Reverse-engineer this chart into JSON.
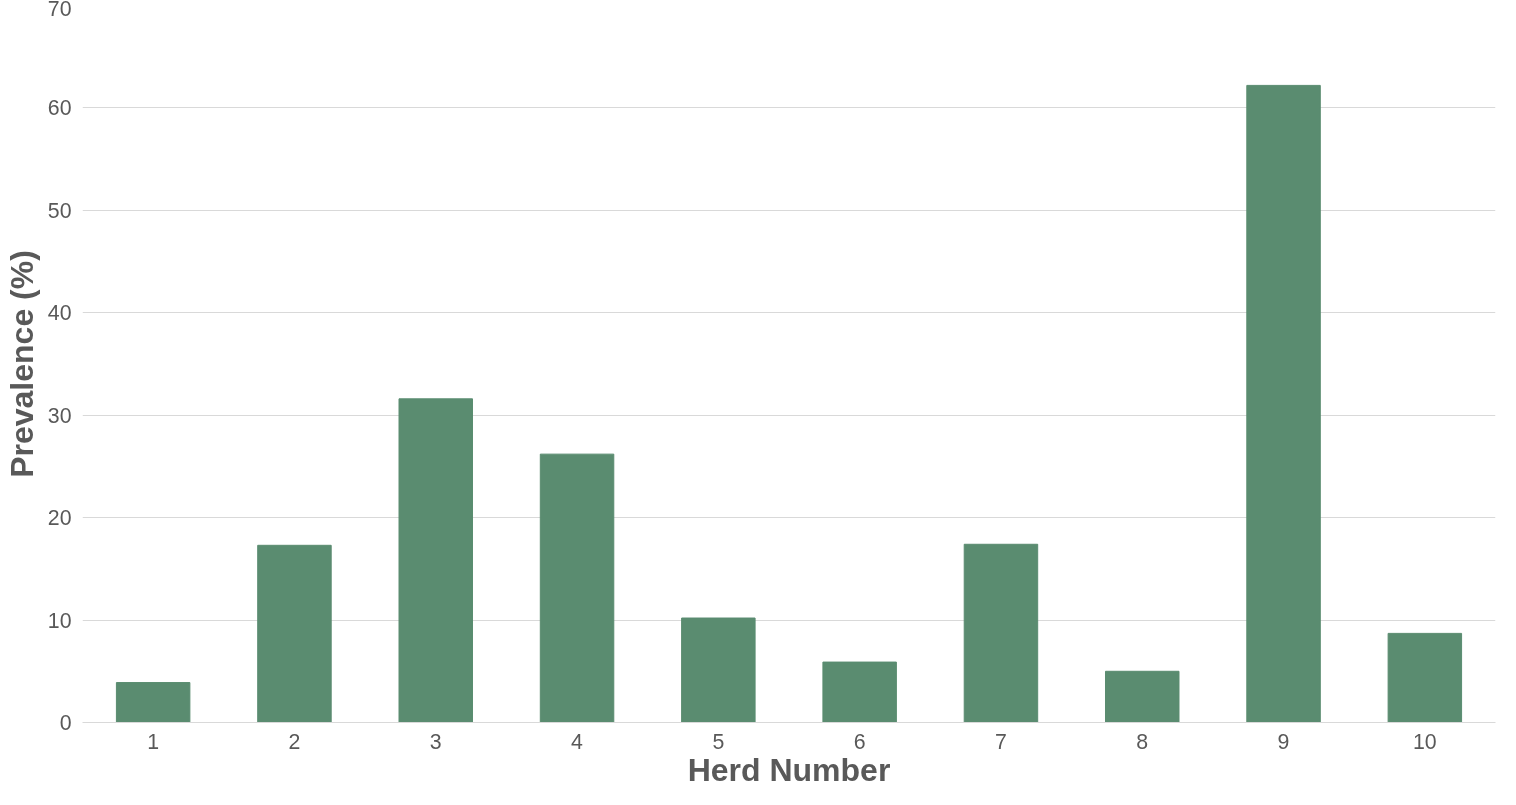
{
  "chart_data": {
    "type": "bar",
    "xlabel": "Herd Number",
    "ylabel": "Prevalence (%)",
    "categories": [
      "1",
      "2",
      "3",
      "4",
      "5",
      "6",
      "7",
      "8",
      "9",
      "10"
    ],
    "values": [
      3.9,
      17.3,
      31.6,
      26.2,
      10.2,
      5.9,
      17.4,
      5.0,
      62.2,
      8.7
    ],
    "color": "#5a8c70",
    "ylim": [
      0,
      70
    ],
    "yticks": [
      0,
      10,
      20,
      30,
      40,
      50,
      60,
      70
    ],
    "grid": "y"
  }
}
